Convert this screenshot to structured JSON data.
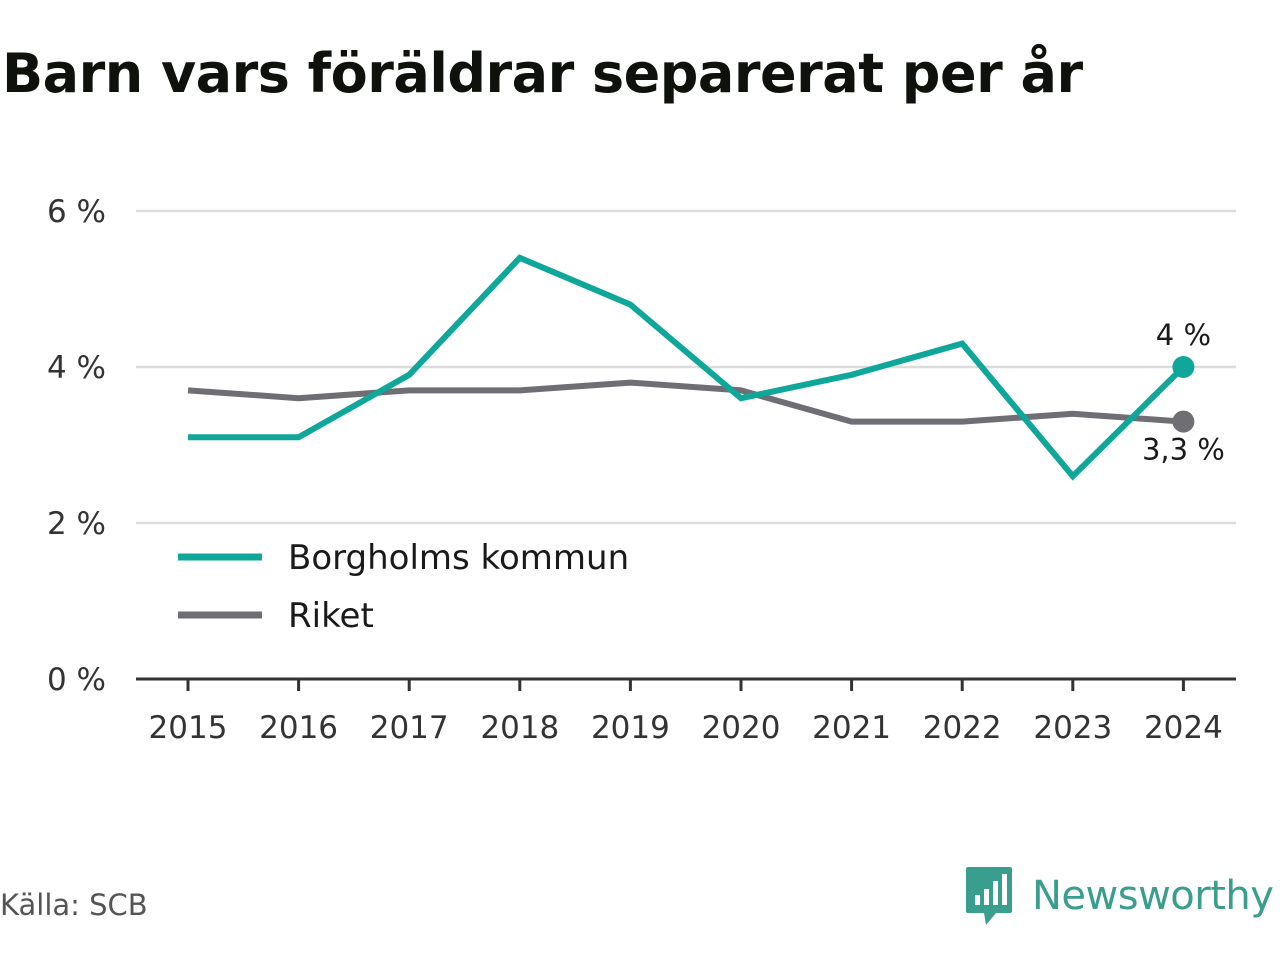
{
  "title": "Barn vars föräldrar separerat per år",
  "source": "Källa: SCB",
  "brand": "Newsworthy",
  "colors": {
    "primary": "#0ea79a",
    "secondary": "#6f6e74",
    "grid": "#dcdcdc",
    "axis": "#333333",
    "brand": "#3a9e8f"
  },
  "chart_data": {
    "type": "line",
    "title": "Barn vars föräldrar separerat per år",
    "x": [
      "2015",
      "2016",
      "2017",
      "2018",
      "2019",
      "2020",
      "2021",
      "2022",
      "2023",
      "2024"
    ],
    "series": [
      {
        "name": "Borgholms kommun",
        "values": [
          3.1,
          3.1,
          3.9,
          5.4,
          4.8,
          3.6,
          3.9,
          4.3,
          2.6,
          4.0
        ],
        "end_label": "4 %"
      },
      {
        "name": "Riket",
        "values": [
          3.7,
          3.6,
          3.7,
          3.7,
          3.8,
          3.7,
          3.3,
          3.3,
          3.4,
          3.3
        ],
        "end_label": "3,3 %"
      }
    ],
    "ylim": [
      0,
      6
    ],
    "yticks": [
      0,
      2,
      4,
      6
    ],
    "ytick_labels": [
      "0 %",
      "2 %",
      "4 %",
      "6 %"
    ],
    "xlabel": "",
    "ylabel": "",
    "grid": true,
    "legend": "bottom-left"
  }
}
